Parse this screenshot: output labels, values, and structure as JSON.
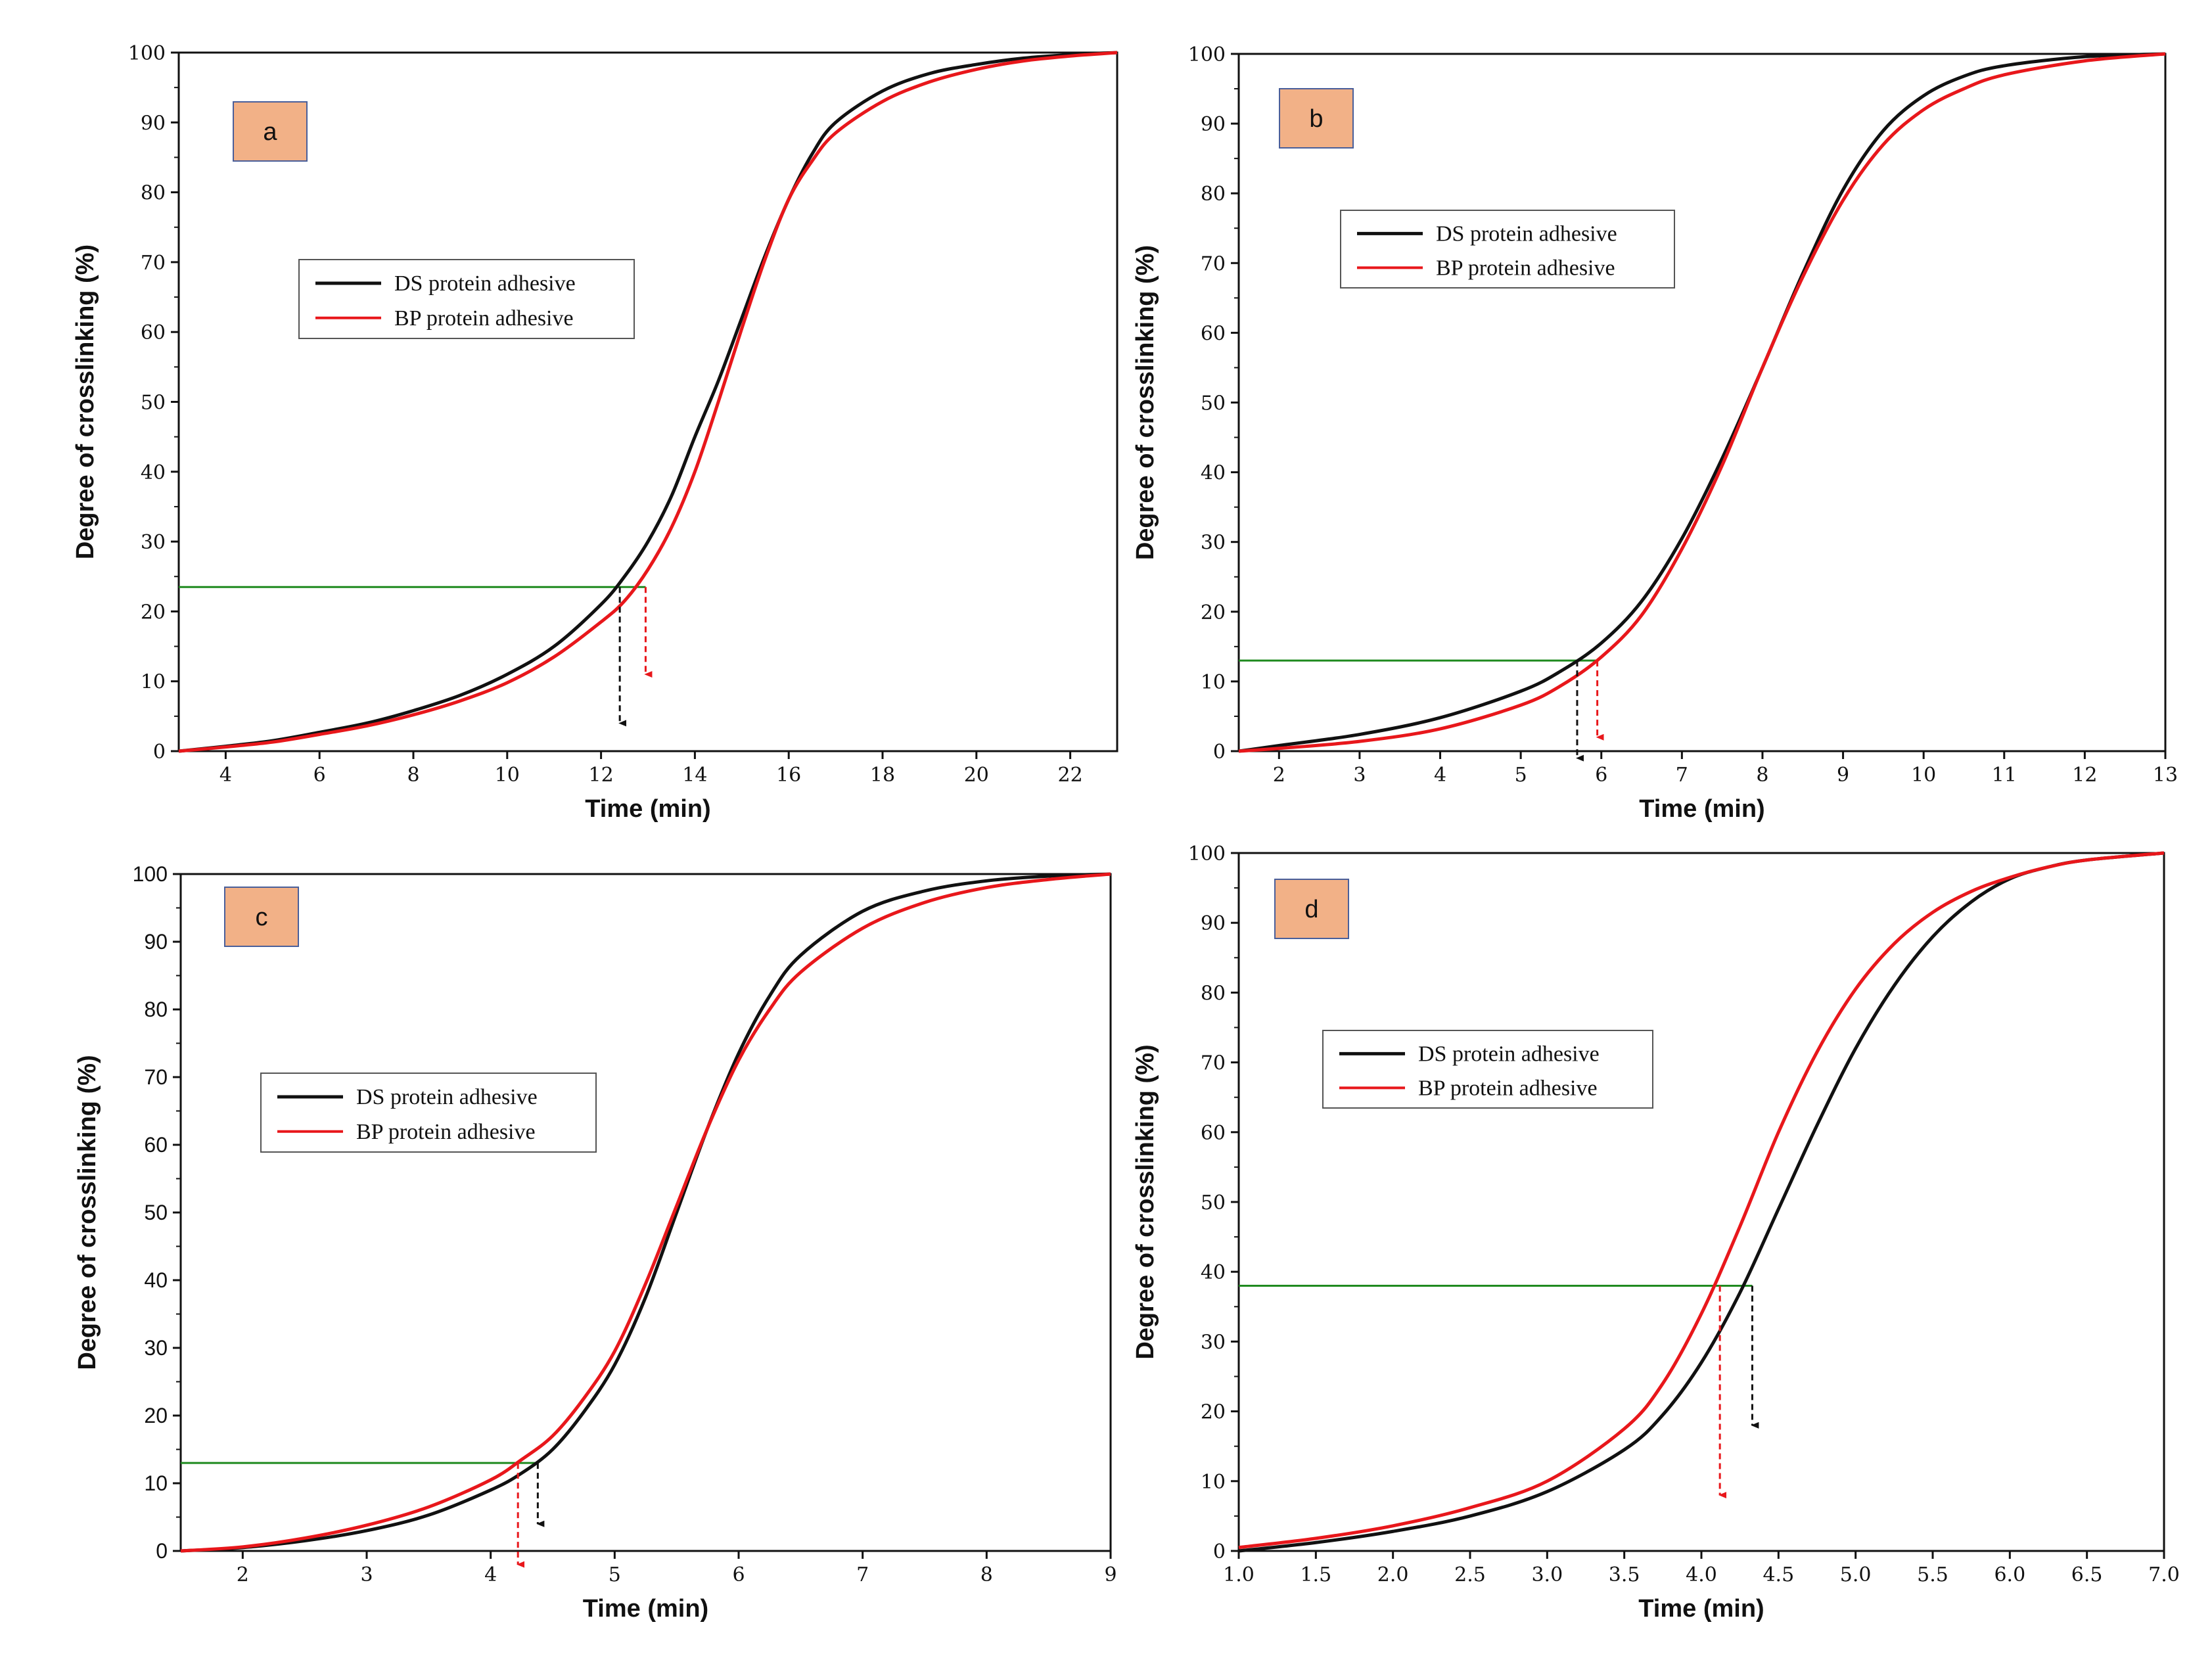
{
  "colors": {
    "ds": "#111111",
    "bp": "#e8171b",
    "ref": "#1f8a1f",
    "label_fill": "#f2b187",
    "label_stroke": "#4a5f9a"
  },
  "chart_data": [
    {
      "type": "line",
      "panel_label": "a",
      "xlabel": "Time  (min)",
      "ylabel": "Degree of crosslinking  (%)",
      "xlim": [
        3,
        23
      ],
      "ylim": [
        0,
        100
      ],
      "xticks": [
        4,
        6,
        8,
        10,
        12,
        14,
        16,
        18,
        20,
        22
      ],
      "yticks": [
        0,
        10,
        20,
        30,
        40,
        50,
        60,
        70,
        80,
        90,
        100
      ],
      "legend": [
        "DS protein adhesive",
        "BP protein adhesive"
      ],
      "series": [
        {
          "name": "DS protein adhesive",
          "x": [
            3,
            4,
            5,
            6,
            7,
            8,
            9,
            10,
            11,
            12,
            12.5,
            13,
            13.5,
            14,
            14.5,
            15,
            15.5,
            16,
            16.5,
            17,
            18,
            19,
            20,
            21,
            22,
            23
          ],
          "y": [
            0,
            0.7,
            1.5,
            2.7,
            4.0,
            5.8,
            8.0,
            11.0,
            15.0,
            21.0,
            25.0,
            30.0,
            36.5,
            45.0,
            53.0,
            62.0,
            71.0,
            79.0,
            85.5,
            90.0,
            94.5,
            97.0,
            98.3,
            99.2,
            99.7,
            100
          ]
        },
        {
          "name": "BP protein adhesive",
          "x": [
            3,
            4,
            5,
            6,
            7,
            8,
            9,
            10,
            11,
            12,
            12.5,
            13,
            13.5,
            14,
            14.5,
            15,
            15.5,
            16,
            16.5,
            17,
            18,
            19,
            20,
            21,
            22,
            23
          ],
          "y": [
            0,
            0.6,
            1.3,
            2.4,
            3.6,
            5.2,
            7.2,
            9.8,
            13.5,
            18.5,
            21.5,
            26.0,
            32.0,
            40.0,
            50.0,
            60.5,
            70.5,
            79.0,
            84.5,
            88.5,
            93.0,
            95.8,
            97.6,
            98.8,
            99.5,
            100
          ]
        }
      ],
      "reference_y": 23.5,
      "markers": [
        {
          "series": "DS",
          "x": 12.4,
          "y_end": 4
        },
        {
          "series": "BP",
          "x": 12.95,
          "y_end": 11
        }
      ]
    },
    {
      "type": "line",
      "panel_label": "b",
      "xlabel": "Time  (min)",
      "ylabel": "Degree of crosslinking  (%)",
      "xlim": [
        1.5,
        13
      ],
      "ylim": [
        0,
        100
      ],
      "xticks": [
        2,
        3,
        4,
        5,
        6,
        7,
        8,
        9,
        10,
        11,
        12,
        13
      ],
      "yticks": [
        0,
        10,
        20,
        30,
        40,
        50,
        60,
        70,
        80,
        90,
        100
      ],
      "legend": [
        "DS protein adhesive",
        "BP protein adhesive"
      ],
      "series": [
        {
          "name": "DS protein adhesive",
          "x": [
            1.5,
            2,
            3,
            4,
            5,
            5.5,
            6,
            6.5,
            7,
            7.5,
            8,
            8.5,
            9,
            9.5,
            10,
            10.5,
            11,
            12,
            13
          ],
          "y": [
            0,
            0.8,
            2.4,
            4.8,
            8.6,
            11.5,
            15.5,
            21.5,
            30.5,
            42.0,
            55.0,
            68.5,
            80.5,
            89.0,
            94.0,
            96.8,
            98.3,
            99.6,
            100
          ]
        },
        {
          "name": "BP protein adhesive",
          "x": [
            1.5,
            2,
            3,
            4,
            5,
            5.5,
            6,
            6.5,
            7,
            7.5,
            8,
            8.5,
            9,
            9.5,
            10,
            10.5,
            11,
            12,
            13
          ],
          "y": [
            0,
            0.4,
            1.4,
            3.2,
            6.6,
            9.4,
            13.5,
            19.5,
            29.0,
            41.0,
            55.0,
            68.0,
            79.0,
            87.0,
            92.0,
            95.0,
            97.0,
            99.0,
            100
          ]
        }
      ],
      "reference_y": 13,
      "markers": [
        {
          "series": "DS",
          "x": 5.7,
          "y_end": -1
        },
        {
          "series": "BP",
          "x": 5.95,
          "y_end": 2
        }
      ]
    },
    {
      "type": "line",
      "panel_label": "c",
      "xlabel": "Time  (min)",
      "ylabel": "Degree of crosslinking  (%)",
      "xlim": [
        1.5,
        9
      ],
      "ylim": [
        0,
        100
      ],
      "xticks": [
        2,
        3,
        4,
        5,
        6,
        7,
        8,
        9
      ],
      "yticks": [
        0,
        10,
        20,
        30,
        40,
        50,
        60,
        70,
        80,
        90,
        100
      ],
      "legend": [
        "DS protein adhesive",
        "BP protein adhesive"
      ],
      "series": [
        {
          "name": "DS protein adhesive",
          "x": [
            1.5,
            2,
            2.5,
            3,
            3.5,
            4,
            4.25,
            4.5,
            4.75,
            5,
            5.25,
            5.5,
            5.75,
            6,
            6.25,
            6.5,
            7,
            7.5,
            8,
            8.5,
            9
          ],
          "y": [
            0,
            0.5,
            1.5,
            3.0,
            5.3,
            9.0,
            11.5,
            15.0,
            20.5,
            27.5,
            37.5,
            50.0,
            62.5,
            73.5,
            82.0,
            88.0,
            94.5,
            97.5,
            99.0,
            99.7,
            100
          ]
        },
        {
          "name": "BP protein adhesive",
          "x": [
            1.5,
            2,
            2.5,
            3,
            3.5,
            4,
            4.25,
            4.5,
            4.75,
            5,
            5.25,
            5.5,
            5.75,
            6,
            6.25,
            6.5,
            7,
            7.5,
            8,
            8.5,
            9
          ],
          "y": [
            0,
            0.6,
            1.9,
            3.8,
            6.5,
            10.5,
            13.5,
            17.0,
            22.5,
            29.5,
            39.5,
            51.0,
            62.5,
            72.5,
            80.0,
            85.5,
            92.0,
            95.8,
            98.0,
            99.2,
            100
          ]
        }
      ],
      "reference_y": 13,
      "markers": [
        {
          "series": "DS",
          "x": 4.38,
          "y_end": 4
        },
        {
          "series": "BP",
          "x": 4.22,
          "y_end": -2
        }
      ]
    },
    {
      "type": "line",
      "panel_label": "d",
      "xlabel": "Time  (min)",
      "ylabel": "Degree of crosslinking  (%)",
      "xlim": [
        1.0,
        7.0
      ],
      "ylim": [
        0,
        100
      ],
      "xticks": [
        "1.0",
        "1.5",
        "2.0",
        "2.5",
        "3.0",
        "3.5",
        "4.0",
        "4.5",
        "5.0",
        "5.5",
        "6.0",
        "6.5",
        "7.0"
      ],
      "yticks": [
        0,
        10,
        20,
        30,
        40,
        50,
        60,
        70,
        80,
        90,
        100
      ],
      "legend": [
        "DS protein adhesive",
        "BP protein adhesive"
      ],
      "series": [
        {
          "name": "DS protein adhesive",
          "x": [
            1.0,
            1.5,
            2.0,
            2.5,
            3.0,
            3.5,
            3.75,
            4.0,
            4.25,
            4.5,
            4.75,
            5.0,
            5.25,
            5.5,
            5.75,
            6.0,
            6.25,
            6.5,
            7.0
          ],
          "y": [
            0,
            1.2,
            2.8,
            5.0,
            8.5,
            14.5,
            19.5,
            27.0,
            37.0,
            49.0,
            61.0,
            72.0,
            81.0,
            88.0,
            93.0,
            96.3,
            98.0,
            99.0,
            100
          ]
        },
        {
          "name": "BP protein adhesive",
          "x": [
            1.0,
            1.5,
            2.0,
            2.5,
            3.0,
            3.5,
            3.75,
            4.0,
            4.25,
            4.5,
            4.75,
            5.0,
            5.25,
            5.5,
            5.75,
            6.0,
            6.25,
            6.5,
            7.0
          ],
          "y": [
            0.5,
            1.8,
            3.6,
            6.2,
            10.0,
            17.5,
            24.0,
            34.0,
            46.5,
            60.0,
            71.5,
            80.5,
            87.0,
            91.5,
            94.5,
            96.5,
            98.0,
            99.0,
            100
          ]
        }
      ],
      "reference_y": 38,
      "markers": [
        {
          "series": "DS",
          "x": 4.33,
          "y_end": 18
        },
        {
          "series": "BP",
          "x": 4.12,
          "y_end": 8
        }
      ]
    }
  ]
}
